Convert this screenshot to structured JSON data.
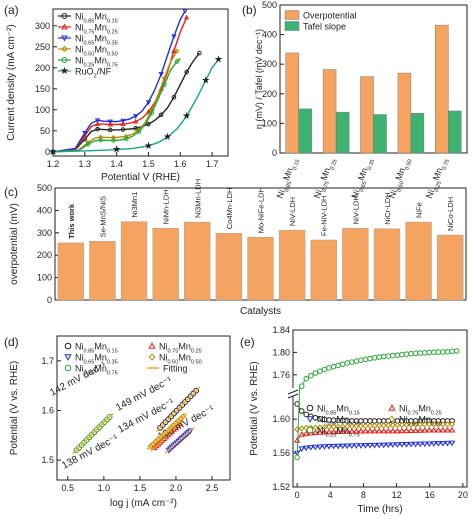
{
  "panel_labels": [
    "(a)",
    "(b)",
    "(c)",
    "(d)",
    "(e)"
  ],
  "colors": {
    "ni085": "#222222",
    "ni075": "#e2211c",
    "ni065": "#1f2fd6",
    "ni050": "#b58a00",
    "ni025": "#27a533",
    "ruo2": "#14a38f",
    "fit": "#f5a11c",
    "bar_orange": "#f4a460",
    "bar_green": "#3cb371",
    "this_work": "#ff0000"
  },
  "chart_data": [
    {
      "id": "a",
      "type": "line",
      "xlabel": "Potential V (RHE)",
      "ylabel": "Current density (mA cm⁻²)",
      "xlim": [
        1.2,
        1.75
      ],
      "ylim": [
        -10,
        340
      ],
      "xticks": [
        "1.2",
        "1.3",
        "1.4",
        "1.5",
        "1.6",
        "1.7"
      ],
      "yticks": [
        "0",
        "50",
        "100",
        "150",
        "200",
        "250",
        "300"
      ],
      "legend_position": "top-left",
      "series": [
        {
          "name": "Ni0.85Mn0.15",
          "legend": {
            "main": "Ni",
            "sub1": "0.85",
            "mid": "Mn",
            "sub2": "0.15"
          },
          "color_key": "ni085",
          "x": [
            1.2,
            1.27,
            1.3,
            1.32,
            1.34,
            1.36,
            1.38,
            1.4,
            1.42,
            1.44,
            1.46,
            1.48,
            1.5,
            1.52,
            1.54,
            1.56,
            1.58,
            1.6,
            1.62,
            1.64,
            1.66
          ],
          "y": [
            0,
            5,
            30,
            48,
            54,
            53,
            52,
            52,
            53,
            54,
            56,
            60,
            66,
            75,
            88,
            105,
            130,
            160,
            190,
            215,
            235
          ]
        },
        {
          "name": "Ni0.75Mn0.25",
          "legend": {
            "main": "Ni",
            "sub1": "0.75",
            "mid": "Mn",
            "sub2": "0.25"
          },
          "color_key": "ni075",
          "x": [
            1.2,
            1.27,
            1.3,
            1.32,
            1.34,
            1.36,
            1.38,
            1.4,
            1.42,
            1.44,
            1.46,
            1.48,
            1.5,
            1.52,
            1.54,
            1.56,
            1.58,
            1.6,
            1.62
          ],
          "y": [
            0,
            6,
            38,
            60,
            66,
            66,
            65,
            65,
            66,
            68,
            72,
            80,
            95,
            118,
            150,
            190,
            240,
            285,
            320
          ]
        },
        {
          "name": "Ni0.65Mn0.35",
          "legend": {
            "main": "Ni",
            "sub1": "0.65",
            "mid": "Mn",
            "sub2": "0.35"
          },
          "color_key": "ni065",
          "x": [
            1.2,
            1.27,
            1.3,
            1.32,
            1.34,
            1.36,
            1.38,
            1.4,
            1.42,
            1.44,
            1.46,
            1.48,
            1.5,
            1.52,
            1.54,
            1.56,
            1.58,
            1.6,
            1.615
          ],
          "y": [
            0,
            8,
            45,
            68,
            75,
            73,
            72,
            72,
            74,
            78,
            85,
            97,
            118,
            148,
            185,
            230,
            275,
            315,
            335
          ]
        },
        {
          "name": "Ni0.50Mn0.50",
          "legend": {
            "main": "Ni",
            "sub1": "0.50",
            "mid": "Mn",
            "sub2": "0.50"
          },
          "color_key": "ni050",
          "x": [
            1.2,
            1.28,
            1.31,
            1.33,
            1.35,
            1.37,
            1.39,
            1.41,
            1.43,
            1.45,
            1.47,
            1.49,
            1.51,
            1.53,
            1.55,
            1.57,
            1.59
          ],
          "y": [
            0,
            4,
            22,
            32,
            35,
            34,
            34,
            35,
            37,
            42,
            52,
            70,
            98,
            135,
            175,
            215,
            240
          ]
        },
        {
          "name": "Ni0.25Mn0.75",
          "legend": {
            "main": "Ni",
            "sub1": "0.25",
            "mid": "Mn",
            "sub2": "0.75"
          },
          "color_key": "ni025",
          "x": [
            1.2,
            1.28,
            1.31,
            1.33,
            1.35,
            1.37,
            1.39,
            1.41,
            1.43,
            1.45,
            1.47,
            1.49,
            1.51,
            1.53,
            1.55,
            1.57,
            1.59,
            1.6
          ],
          "y": [
            0,
            3,
            18,
            26,
            28,
            27,
            27,
            28,
            31,
            37,
            48,
            66,
            92,
            125,
            160,
            195,
            215,
            222
          ]
        },
        {
          "name": "RuO2/NF",
          "legend": {
            "main": "RuO",
            "sub1": "2",
            "mid": "/NF",
            "sub2": ""
          },
          "color_key": "ruo2",
          "x": [
            1.2,
            1.3,
            1.4,
            1.45,
            1.5,
            1.53,
            1.56,
            1.59,
            1.62,
            1.65,
            1.68,
            1.7,
            1.72
          ],
          "y": [
            0,
            2,
            5,
            8,
            14,
            22,
            35,
            55,
            85,
            125,
            170,
            200,
            220
          ]
        }
      ]
    },
    {
      "id": "b",
      "type": "bar",
      "ylabel": "η (mV) / Tafel (mV dec⁻¹)",
      "ylim": [
        0,
        500
      ],
      "yticks": [
        "0",
        "100",
        "200",
        "300",
        "400",
        "500"
      ],
      "legend_position": "top-left",
      "categories": [
        {
          "main": "Ni",
          "sub1": "0.85",
          "mid": "Mn",
          "sub2": "0.15"
        },
        {
          "main": "Ni",
          "sub1": "0.75",
          "mid": "Mn",
          "sub2": "0.25"
        },
        {
          "main": "Ni",
          "sub1": "0.65",
          "mid": "Mn",
          "sub2": "0.35"
        },
        {
          "main": "Ni",
          "sub1": "0.50",
          "mid": "Mn",
          "sub2": "0.50"
        },
        {
          "main": "Ni",
          "sub1": "0.25",
          "mid": "Mn",
          "sub2": "0.75"
        }
      ],
      "series": [
        {
          "name": "Overpotential",
          "color_key": "bar_orange",
          "values": [
            338,
            282,
            258,
            270,
            432
          ]
        },
        {
          "name": "Tafel slope",
          "color_key": "bar_green",
          "values": [
            149,
            138,
            130,
            134,
            142
          ]
        }
      ]
    },
    {
      "id": "c",
      "type": "bar",
      "xlabel": "Catalysts",
      "ylabel": "overpotential (mV)",
      "ylim": [
        0,
        500
      ],
      "yticks": [
        "0",
        "100",
        "200",
        "300",
        "400",
        "500"
      ],
      "categories": [
        {
          "label": "This work",
          "highlight": true
        },
        {
          "label": "Se-MnS/NiS"
        },
        {
          "label": "Ni3Mn1"
        },
        {
          "label": "NiMn-LDH"
        },
        {
          "label": "Ni3Mn-LDH"
        },
        {
          "label": "Co4Mn-LDH"
        },
        {
          "label": "Mo-NiFe-LDH"
        },
        {
          "label": "NiV-LDH"
        },
        {
          "label": "Fe-NiV-LDH"
        },
        {
          "label": "NiV-LDH"
        },
        {
          "label": "NiCr-LDH"
        },
        {
          "label": "NiFe"
        },
        {
          "label": "NiCo-LDH"
        }
      ],
      "values": [
        255,
        262,
        350,
        320,
        348,
        298,
        280,
        312,
        268,
        320,
        318,
        348,
        290
      ],
      "bar_color_key": "bar_orange"
    },
    {
      "id": "d",
      "type": "scatter",
      "xlabel": "log j (mA cm⁻²)",
      "ylabel": "Potential (V vs. RHE)",
      "xlim": [
        0.35,
        2.75
      ],
      "ylim": [
        1.46,
        1.75
      ],
      "xticks": [
        "0.5",
        "1.0",
        "1.5",
        "2.0",
        "2.5"
      ],
      "yticks": [
        "1.5",
        "1.6",
        "1.7"
      ],
      "legend_position": "top",
      "fit_legend": "Fitting",
      "series": [
        {
          "name": "Ni0.85Mn0.15",
          "legend": {
            "main": "Ni",
            "sub1": "0.85",
            "mid": "Mn",
            "sub2": "0.15"
          },
          "color_key": "ni085",
          "marker": "circle",
          "x_range": [
            1.78,
            2.28
          ],
          "y_range": [
            1.565,
            1.64
          ],
          "slope_label": "149 mV dec⁻¹"
        },
        {
          "name": "Ni0.75Mn0.25",
          "legend": {
            "main": "Ni",
            "sub1": "0.75",
            "mid": "Mn",
            "sub2": "0.25"
          },
          "color_key": "ni075",
          "marker": "triangle-up",
          "x_range": [
            1.7,
            2.05
          ],
          "y_range": [
            1.525,
            1.573
          ],
          "slope_label": "138 mV dec⁻¹"
        },
        {
          "name": "Ni0.65Mn0.35",
          "legend": {
            "main": "Ni",
            "sub1": "0.65",
            "mid": "Mn",
            "sub2": "0.35"
          },
          "color_key": "ni065",
          "marker": "triangle-down",
          "x_range": [
            1.9,
            2.2
          ],
          "y_range": [
            1.52,
            1.559
          ],
          "slope_label": "130 mV dec⁻¹"
        },
        {
          "name": "Ni0.50Mn0.50",
          "legend": {
            "main": "Ni",
            "sub1": "0.50",
            "mid": "Mn",
            "sub2": "0.50"
          },
          "color_key": "ni050",
          "marker": "diamond",
          "x_range": [
            1.65,
            2.1
          ],
          "y_range": [
            1.528,
            1.588
          ],
          "slope_label": "134 mV dec⁻¹"
        },
        {
          "name": "Ni0.25Mn0.75",
          "legend": {
            "main": "Ni",
            "sub1": "0.25",
            "mid": "Mn",
            "sub2": "0.75"
          },
          "color_key": "ni025",
          "marker": "circle",
          "x_range": [
            0.62,
            1.08
          ],
          "y_range": [
            1.52,
            1.587
          ],
          "slope_label": "142 mV dec⁻¹"
        }
      ]
    },
    {
      "id": "e",
      "type": "line",
      "xlabel": "Time (hrs)",
      "ylabel": "Potential (V vs. RHE)",
      "xlim": [
        -0.5,
        20.5
      ],
      "ylim": [
        1.52,
        1.84
      ],
      "xticks": [
        "0",
        "4",
        "8",
        "12",
        "16",
        "20"
      ],
      "yticks": [
        "1.52",
        "1.56",
        "1.60",
        "1.76",
        "1.80",
        "1.84"
      ],
      "axis_break": true,
      "legend_position": "center",
      "series": [
        {
          "name": "Ni0.85Mn0.15",
          "legend": {
            "main": "Ni",
            "sub1": "0.85",
            "mid": "Mn",
            "sub2": "0.15"
          },
          "color_key": "ni085",
          "marker": "circle",
          "t": [
            0,
            0.5,
            1,
            2,
            3,
            4,
            6,
            8,
            12,
            16,
            19
          ],
          "v": [
            1.618,
            1.61,
            1.606,
            1.602,
            1.6,
            1.599,
            1.598,
            1.598,
            1.598,
            1.598,
            1.598
          ]
        },
        {
          "name": "Ni0.75Mn0.25",
          "legend": {
            "main": "Ni",
            "sub1": "0.75",
            "mid": "Mn",
            "sub2": "0.25"
          },
          "color_key": "ni075",
          "marker": "triangle-up",
          "t": [
            0,
            0.5,
            1,
            2,
            4,
            8,
            12,
            16,
            19
          ],
          "v": [
            1.575,
            1.582,
            1.583,
            1.584,
            1.585,
            1.586,
            1.586,
            1.587,
            1.587
          ]
        },
        {
          "name": "Ni0.65Mn0.35",
          "legend": {
            "main": "Ni",
            "sub1": "0.65",
            "mid": "Mn",
            "sub2": "0.35"
          },
          "color_key": "ni065",
          "marker": "triangle-down",
          "t": [
            0,
            0.5,
            1,
            2,
            4,
            8,
            12,
            16,
            19
          ],
          "v": [
            1.56,
            1.565,
            1.566,
            1.567,
            1.568,
            1.569,
            1.57,
            1.571,
            1.572
          ]
        },
        {
          "name": "Ni0.50Mn0.50",
          "legend": {
            "main": "Ni",
            "sub1": "0.50",
            "mid": "Mn",
            "sub2": "0.50"
          },
          "color_key": "ni050",
          "marker": "diamond",
          "t": [
            0,
            0.5,
            1,
            2,
            4,
            8,
            12,
            16,
            19
          ],
          "v": [
            1.588,
            1.589,
            1.59,
            1.59,
            1.591,
            1.592,
            1.593,
            1.594,
            1.594
          ]
        },
        {
          "name": "Ni0.25Mn0.75",
          "legend": {
            "main": "Ni",
            "sub1": "0.25",
            "mid": "Mn",
            "sub2": "0.75"
          },
          "color_key": "ni025",
          "marker": "circle",
          "t": [
            0,
            0.3,
            0.6,
            1,
            2,
            3,
            4,
            6,
            8,
            10,
            12,
            14,
            16,
            18,
            19.5
          ],
          "v": [
            1.555,
            1.722,
            1.742,
            1.752,
            1.762,
            1.768,
            1.773,
            1.781,
            1.787,
            1.792,
            1.795,
            1.798,
            1.8,
            1.801,
            1.803
          ]
        }
      ]
    }
  ]
}
